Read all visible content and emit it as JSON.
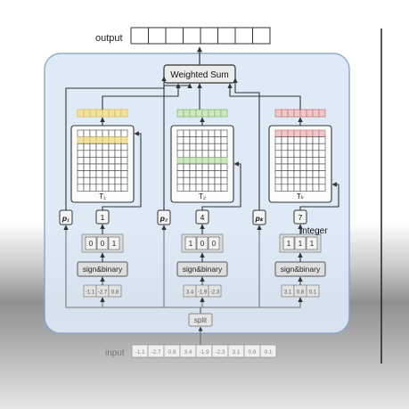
{
  "labels": {
    "output": "output",
    "input": "input",
    "weighted_sum": "Weighted Sum",
    "split": "split",
    "integer": "integer",
    "sign_binary": "sign&binary"
  },
  "input_values": [
    "-1.1",
    "-2.7",
    "0.8",
    "3.4",
    "-1.9",
    "-2.3",
    "3.1",
    "0.8",
    "0.1"
  ],
  "output_cells": 8,
  "branches": [
    {
      "table": "T₁",
      "p": "p₁",
      "index": "1",
      "bits": [
        "0",
        "0",
        "1"
      ],
      "chunk": [
        "-1.1",
        "-2.7",
        "0.8"
      ],
      "highlight_color": "#f3e3a0",
      "highlight_border": "#d6b54a"
    },
    {
      "table": "T₂",
      "p": "p₂",
      "index": "4",
      "bits": [
        "1",
        "0",
        "0"
      ],
      "chunk": [
        "3.4",
        "-1.9",
        "-2.3"
      ],
      "highlight_color": "#cfe8c2",
      "highlight_border": "#79b567"
    },
    {
      "table": "Tₖ",
      "p": "pₖ",
      "index": "7",
      "bits": [
        "1",
        "1",
        "1"
      ],
      "chunk": [
        "3.1",
        "0.8",
        "0.1"
      ],
      "highlight_color": "#efc9c9",
      "highlight_border": "#c46b6b"
    }
  ],
  "colors": {
    "panel_fill": "#dde9f7",
    "panel_border": "#8aa5c6",
    "box_fill": "#e6e6e6",
    "line": "#333333"
  }
}
